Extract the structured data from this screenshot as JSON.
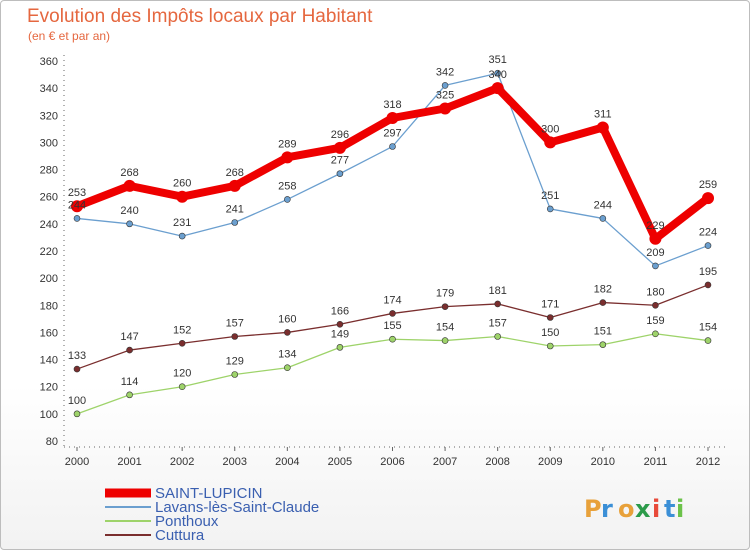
{
  "title": "Evolution des Impôts locaux par Habitant",
  "subtitle": "(en € et par an)",
  "brand": [
    "P",
    "r",
    "o",
    "x",
    "i",
    "t",
    "i"
  ],
  "brand_colors": [
    "#e8a13a",
    "#3b8fd6",
    "#e8a13a",
    "#2c9b4a",
    "#e84a3a",
    "#3b8fd6",
    "#6cc24a"
  ],
  "chart_data": {
    "type": "line",
    "title": "Evolution des Impôts locaux par Habitant",
    "subtitle": "(en € et par an)",
    "x": [
      "2000",
      "2001",
      "2002",
      "2003",
      "2004",
      "2005",
      "2006",
      "2007",
      "2008",
      "2009",
      "2010",
      "2011",
      "2012"
    ],
    "yticks": [
      "80",
      "100",
      "120",
      "140",
      "160",
      "180",
      "200",
      "220",
      "240",
      "260",
      "280",
      "300",
      "320",
      "340",
      "360"
    ],
    "ylim": [
      80,
      360
    ],
    "grid": false,
    "legend_position": "bottom-left",
    "series": [
      {
        "name": "SAINT-LUPICIN",
        "color": "#ee0000",
        "thick": true,
        "values": [
          253,
          268,
          260,
          268,
          289,
          296,
          318,
          325,
          340,
          300,
          311,
          229,
          259
        ],
        "labels": [
          "253",
          "268",
          "260",
          "268",
          "289",
          "296",
          "318",
          "325",
          "340",
          "300",
          "311",
          "229",
          "259"
        ]
      },
      {
        "name": "Lavans-lès-Saint-Claude",
        "color": "#6b9fcf",
        "thick": false,
        "values": [
          244,
          240,
          231,
          241,
          258,
          277,
          297,
          342,
          351,
          251,
          244,
          209,
          224
        ],
        "labels": [
          "244",
          "240",
          "231",
          "241",
          "258",
          "277",
          "297",
          "342",
          "351",
          "251",
          "244",
          "209",
          "224"
        ]
      },
      {
        "name": "Ponthoux",
        "color": "#9ed36a",
        "thick": false,
        "values": [
          100,
          114,
          120,
          129,
          134,
          149,
          155,
          154,
          157,
          150,
          151,
          159,
          154
        ],
        "labels": [
          "100",
          "114",
          "120",
          "129",
          "134",
          "149",
          "155",
          "154",
          "157",
          "150",
          "151",
          "159",
          "154"
        ]
      },
      {
        "name": "Cuttura",
        "color": "#7a2e2e",
        "thick": false,
        "values": [
          133,
          147,
          152,
          157,
          160,
          166,
          174,
          179,
          181,
          171,
          182,
          180,
          195
        ],
        "labels": [
          "133",
          "147",
          "152",
          "157",
          "160",
          "166",
          "174",
          "179",
          "181",
          "171",
          "182",
          "180",
          "195"
        ]
      }
    ]
  }
}
